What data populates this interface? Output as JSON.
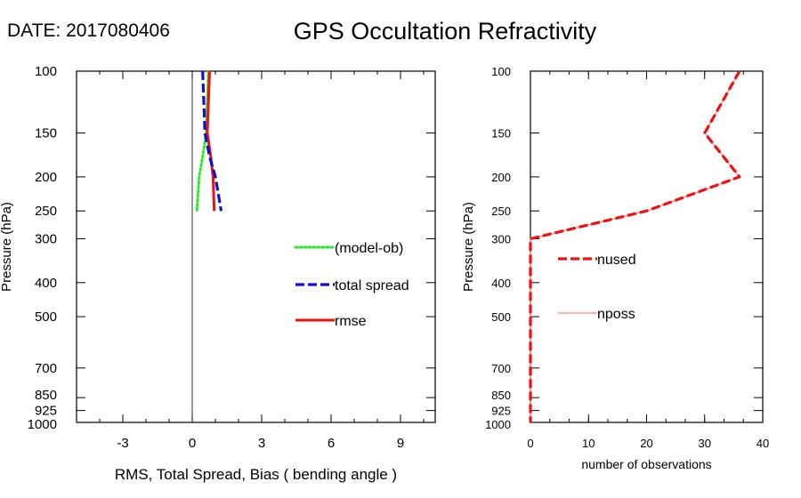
{
  "date_label": "DATE: 2017080406",
  "title": "GPS Occultation Refractivity",
  "chart_data": [
    {
      "type": "line",
      "y_scale": "log",
      "xlabel": "RMS, Total Spread, Bias ( bending angle )",
      "ylabel": "Pressure (hPa)",
      "xlim": [
        -5,
        10.5
      ],
      "ylim": [
        1000,
        100
      ],
      "x_ticks": [
        -3,
        0,
        3,
        6,
        9
      ],
      "y_ticks": [
        100,
        150,
        200,
        250,
        300,
        400,
        500,
        700,
        850,
        925,
        1000
      ],
      "zero_line": 0,
      "series": [
        {
          "name": "(model-ob)",
          "color": "#22ee22",
          "style": "dotted",
          "x": [
            0.7,
            0.6,
            0.45,
            0.3,
            0.2
          ],
          "y": [
            100,
            150,
            175,
            200,
            250
          ]
        },
        {
          "name": "total spread",
          "color": "#1111cc",
          "style": "dashed",
          "x": [
            0.45,
            0.55,
            0.75,
            1.0,
            1.25
          ],
          "y": [
            100,
            150,
            175,
            200,
            250
          ]
        },
        {
          "name": "rmse",
          "color": "#ee1111",
          "style": "solid",
          "x": [
            0.75,
            0.65,
            0.8,
            0.9,
            0.95
          ],
          "y": [
            100,
            150,
            175,
            200,
            250
          ]
        }
      ],
      "extra_series": [
        {
          "color": "#ff8800",
          "style": "solid",
          "x": [
            0.72,
            0.62
          ],
          "y": [
            100,
            140
          ]
        }
      ]
    },
    {
      "type": "line",
      "y_scale": "log",
      "xlabel": "number of observations",
      "ylabel": "Pressure (hPa)",
      "xlim": [
        0,
        40
      ],
      "ylim": [
        1000,
        100
      ],
      "x_ticks": [
        0,
        10,
        20,
        30,
        40
      ],
      "y_ticks": [
        100,
        150,
        200,
        250,
        300,
        400,
        500,
        700,
        850,
        925,
        1000
      ],
      "series": [
        {
          "name": "nused",
          "color": "#ee1111",
          "style": "dashed",
          "x": [
            36,
            30,
            36,
            20,
            0,
            0,
            0,
            0,
            0,
            0,
            0
          ],
          "y": [
            100,
            150,
            200,
            250,
            300,
            400,
            500,
            700,
            850,
            925,
            1000
          ]
        },
        {
          "name": "nposs",
          "color": "#f08080",
          "style": "thin",
          "x": [
            36,
            30,
            36,
            20,
            0,
            0,
            0,
            0,
            0,
            0,
            0
          ],
          "y": [
            100,
            150,
            200,
            250,
            300,
            400,
            500,
            700,
            850,
            925,
            1000
          ]
        }
      ]
    }
  ]
}
